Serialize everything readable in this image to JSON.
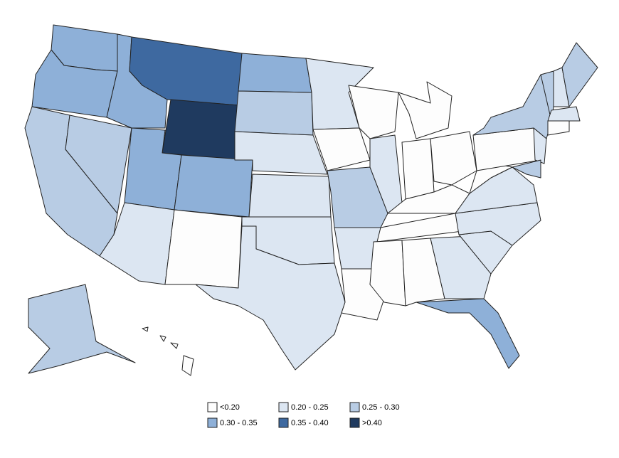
{
  "legend": {
    "items": [
      {
        "label": "<0.20",
        "color": "#fdfdfd"
      },
      {
        "label": "0.20 - 0.25",
        "color": "#dce6f2"
      },
      {
        "label": "0.25 - 0.30",
        "color": "#b8cce4"
      },
      {
        "label": "0.30 - 0.35",
        "color": "#8eb0d8"
      },
      {
        "label": "0.35 - 0.40",
        "color": "#3e69a0"
      },
      {
        "label": ">0.40",
        "color": "#1f3a5f"
      }
    ]
  }
}
